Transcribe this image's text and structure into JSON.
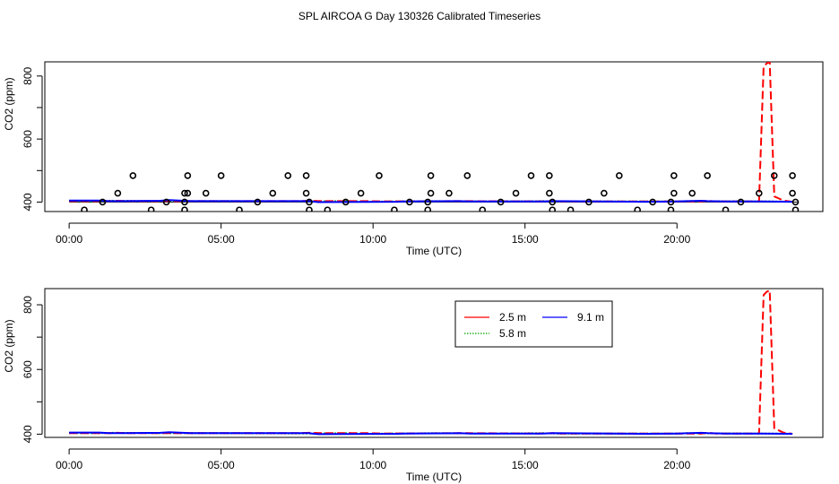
{
  "title": "SPL AIRCOA G  Day 130326  Calibrated Timeseries",
  "colors": {
    "red": "#ff0000",
    "green": "#00a000",
    "blue": "#0000ff",
    "black": "#000000"
  },
  "chart_data": [
    {
      "type": "scatter",
      "xlabel": "Time (UTC)",
      "ylabel": "CO2 (ppm)",
      "xlim": [
        -0.8,
        24.8
      ],
      "ylim": [
        370,
        845
      ],
      "x_ticks": [
        0,
        5,
        10,
        15,
        20
      ],
      "x_tick_labels": [
        "00:00",
        "05:00",
        "10:00",
        "15:00",
        "20:00"
      ],
      "y_ticks": [
        400,
        600,
        800
      ],
      "y_tick_labels": [
        "400",
        "600",
        "800"
      ],
      "reference_line": 400,
      "points": {
        "x": [
          0.5,
          1.1,
          1.6,
          2.1,
          2.7,
          3.2,
          3.8,
          3.8,
          3.8,
          3.9,
          3.9,
          4.5,
          5.0,
          5.6,
          6.2,
          6.7,
          7.2,
          7.8,
          7.8,
          7.9,
          7.9,
          8.5,
          9.1,
          9.6,
          10.2,
          10.7,
          11.2,
          11.8,
          11.8,
          11.9,
          11.9,
          12.5,
          13.1,
          13.6,
          14.2,
          14.7,
          15.2,
          15.8,
          15.8,
          15.9,
          15.9,
          16.5,
          17.1,
          17.6,
          18.1,
          18.7,
          19.2,
          19.8,
          19.8,
          19.9,
          19.9,
          20.5,
          21.0,
          21.6,
          22.1,
          22.7,
          23.2,
          23.8,
          23.8,
          23.9,
          23.9
        ],
        "y": [
          375,
          400,
          428,
          484,
          375,
          400,
          375,
          400,
          428,
          428,
          484,
          428,
          484,
          375,
          400,
          428,
          484,
          484,
          428,
          400,
          375,
          375,
          400,
          428,
          484,
          375,
          400,
          375,
          400,
          428,
          484,
          428,
          484,
          375,
          400,
          428,
          484,
          484,
          428,
          400,
          375,
          375,
          400,
          428,
          484,
          375,
          400,
          375,
          400,
          428,
          484,
          428,
          484,
          375,
          400,
          428,
          484,
          484,
          428,
          400,
          375
        ]
      },
      "series": [
        {
          "name": "2.5 m",
          "color": "red",
          "x": [
            0,
            1.3,
            1.6,
            1.9,
            4.0,
            7.5,
            7.9,
            8.3,
            9.8,
            10.3,
            12.8,
            13.1,
            15.4,
            15.9,
            16.2,
            19.5,
            20.8,
            21.0,
            21.3,
            22.7,
            22.85,
            22.95,
            23.05,
            23.2,
            23.5,
            23.8
          ],
          "y": [
            403,
            403,
            404,
            403,
            403,
            403,
            404,
            403,
            403,
            402,
            403,
            403,
            402,
            403,
            402,
            402,
            402,
            404,
            402,
            402,
            830,
            840,
            845,
            418,
            405,
            401
          ]
        },
        {
          "name": "5.8 m",
          "color": "green",
          "x": [
            0,
            1.0,
            1.4,
            3.0,
            5.0,
            8.0,
            9.2,
            9.8,
            12.0,
            14.0,
            15.6,
            16.0,
            18.0,
            20.0,
            20.3,
            22.5,
            23.0,
            23.8
          ],
          "y": [
            403,
            403,
            404,
            403,
            403,
            402,
            403,
            401,
            403,
            402,
            403,
            402,
            402,
            402,
            403,
            402,
            402,
            401
          ]
        },
        {
          "name": "9.1 m",
          "color": "blue",
          "x": [
            0,
            1.0,
            1.3,
            1.8,
            3.0,
            3.3,
            4.0,
            7.9,
            8.0,
            8.2,
            10.8,
            11.0,
            12.8,
            13.2,
            15.6,
            15.9,
            19.0,
            20.0,
            20.8,
            21.0,
            21.6,
            22.8,
            23.8
          ],
          "y": [
            405,
            405,
            403,
            403,
            404,
            406,
            403,
            403,
            402,
            400,
            401,
            402,
            403,
            402,
            402,
            403,
            401,
            402,
            404,
            403,
            402,
            402,
            401
          ]
        }
      ]
    },
    {
      "type": "line",
      "xlabel": "Time (UTC)",
      "ylabel": "CO2 (ppm)",
      "xlim": [
        -0.8,
        24.8
      ],
      "ylim": [
        390,
        850
      ],
      "x_ticks": [
        0,
        5,
        10,
        15,
        20
      ],
      "x_tick_labels": [
        "00:00",
        "05:00",
        "10:00",
        "15:00",
        "20:00"
      ],
      "y_ticks": [
        400,
        600,
        800
      ],
      "y_tick_labels": [
        "400",
        "600",
        "800"
      ],
      "legend": [
        {
          "label": "2.5 m",
          "color": "red"
        },
        {
          "label": "9.1 m",
          "color": "blue"
        },
        {
          "label": "5.8 m",
          "color": "green"
        }
      ],
      "series": [
        {
          "name": "2.5 m",
          "color": "red",
          "x": [
            0,
            1.3,
            1.6,
            1.9,
            4.0,
            7.5,
            7.9,
            8.3,
            9.8,
            10.3,
            12.8,
            13.1,
            15.4,
            15.9,
            16.2,
            19.5,
            20.8,
            21.0,
            21.3,
            22.7,
            22.85,
            22.95,
            23.05,
            23.2,
            23.5,
            23.8
          ],
          "y": [
            403,
            403,
            404,
            403,
            403,
            403,
            404,
            403,
            403,
            402,
            403,
            403,
            402,
            403,
            402,
            402,
            402,
            404,
            402,
            402,
            830,
            840,
            845,
            418,
            405,
            401
          ]
        },
        {
          "name": "5.8 m",
          "color": "green",
          "x": [
            0,
            1.0,
            1.4,
            3.0,
            5.0,
            8.0,
            9.2,
            9.8,
            12.0,
            14.0,
            15.6,
            16.0,
            18.0,
            20.0,
            20.3,
            22.5,
            23.0,
            23.8
          ],
          "y": [
            403,
            403,
            404,
            403,
            403,
            402,
            403,
            401,
            403,
            402,
            403,
            402,
            402,
            402,
            403,
            402,
            402,
            401
          ]
        },
        {
          "name": "9.1 m",
          "color": "blue",
          "x": [
            0,
            1.0,
            1.3,
            1.8,
            3.0,
            3.3,
            4.0,
            7.9,
            8.0,
            8.2,
            10.8,
            11.0,
            12.8,
            13.2,
            15.6,
            15.9,
            19.0,
            20.0,
            20.8,
            21.0,
            21.6,
            22.8,
            23.8
          ],
          "y": [
            405,
            405,
            403,
            403,
            404,
            406,
            403,
            403,
            402,
            400,
            401,
            402,
            403,
            402,
            402,
            403,
            401,
            402,
            404,
            403,
            402,
            402,
            401
          ]
        }
      ]
    }
  ]
}
